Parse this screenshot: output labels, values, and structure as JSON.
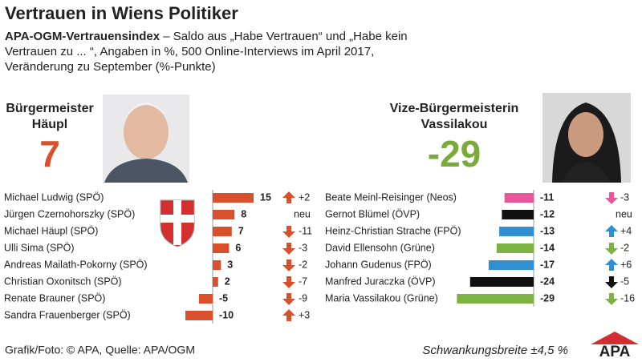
{
  "title": "Vertrauen in Wiens Politiker",
  "subtitle_bold": "APA-OGM-Vertrauensindex",
  "subtitle": "– Saldo aus „Habe Vertrauen“ und „Habe kein Vertrauen zu ... “, Angaben in %, 500 Online-Interviews im April 2017, Veränderung zu September (%-Punkte)",
  "featured": [
    {
      "role": "Bürgermeister",
      "name": "Häupl",
      "value": 7,
      "color": "#d9512c"
    },
    {
      "role": "Vize-Bürgermeisterin",
      "name": "Vassilakou",
      "value": -29,
      "color": "#7aab3a"
    }
  ],
  "chart_data": [
    {
      "type": "bar",
      "orientation": "horizontal",
      "categories": [
        "Michael Ludwig (SPÖ)",
        "Jürgen Czernohorszky (SPÖ)",
        "Michael Häupl (SPÖ)",
        "Ulli Sima (SPÖ)",
        "Andreas Mailath-Pokorny (SPÖ)",
        "Christian Oxonitsch (SPÖ)",
        "Renate Brauner (SPÖ)",
        "Sandra Frauenberger (SPÖ)"
      ],
      "values": [
        15,
        8,
        7,
        6,
        3,
        2,
        -5,
        -10
      ],
      "color": "#d9512c",
      "changes": [
        2,
        null,
        -11,
        -3,
        -2,
        -7,
        -9,
        3
      ],
      "change_labels": [
        "+2",
        "neu",
        "-11",
        "-3",
        "-2",
        "-7",
        "-9",
        "+3"
      ]
    },
    {
      "type": "bar",
      "orientation": "horizontal",
      "categories": [
        "Beate Meinl-Reisinger (Neos)",
        "Gernot Blümel (ÖVP)",
        "Heinz-Christian Strache (FPÖ)",
        "David Ellensohn (Grüne)",
        "Johann Gudenus (FPÖ)",
        "Manfred Juraczka (ÖVP)",
        "Maria Vassilakou (Grüne)"
      ],
      "values": [
        -11,
        -12,
        -13,
        -14,
        -17,
        -24,
        -29
      ],
      "colors": [
        "#e8559a",
        "#111111",
        "#2f8fd0",
        "#7cb342",
        "#2f8fd0",
        "#111111",
        "#7cb342"
      ],
      "changes": [
        -3,
        null,
        4,
        -2,
        6,
        -5,
        -16
      ],
      "change_labels": [
        "-3",
        "neu",
        "+4",
        "-2",
        "+6",
        "-5",
        "-16"
      ]
    }
  ],
  "footer": {
    "source": "Grafik/Foto: © APA, Quelle: APA/OGM",
    "note": "Schwankungsbreite ±4,5 %",
    "logo": "APA"
  }
}
